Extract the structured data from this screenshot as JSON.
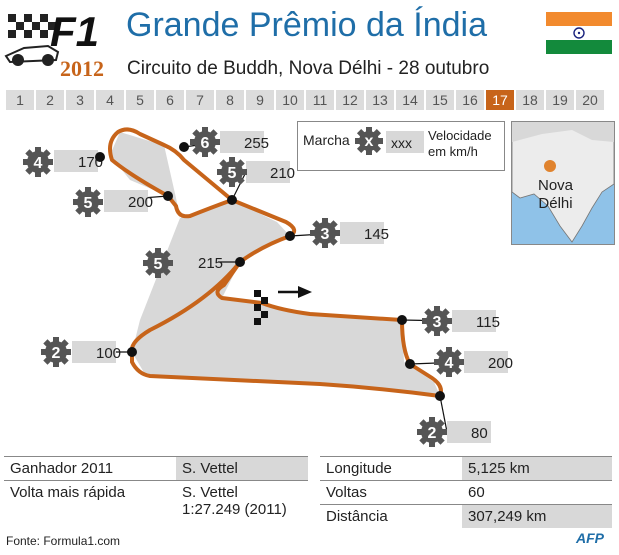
{
  "header": {
    "title": "Grande Prêmio da Índia",
    "subtitle": "Circuito de Buddh, Nova Délhi - 28 outubro",
    "logo_text": "F1",
    "year": "2012"
  },
  "flag": {
    "colors": [
      "#f28a2e",
      "#ffffff",
      "#138a3c"
    ],
    "wheel_color": "#1a237e"
  },
  "rounds": {
    "items": [
      "1",
      "2",
      "3",
      "4",
      "5",
      "6",
      "7",
      "8",
      "9",
      "10",
      "11",
      "12",
      "13",
      "14",
      "15",
      "16",
      "17",
      "18",
      "19",
      "20"
    ],
    "active": "17",
    "accent": "#c7641a"
  },
  "legend": {
    "gear_label": "Marcha",
    "gear_symbol": "x",
    "speed_symbol": "xxx",
    "speed_label_1": "Velocidade",
    "speed_label_2": "em km/h"
  },
  "inset": {
    "city_1": "Nova",
    "city_2": "Délhi"
  },
  "corners": [
    {
      "gear": "6",
      "speed": "255"
    },
    {
      "gear": "4",
      "speed": "170"
    },
    {
      "gear": "5",
      "speed": "210"
    },
    {
      "gear": "5",
      "speed": "200"
    },
    {
      "gear": "3",
      "speed": "145"
    },
    {
      "gear": "5",
      "speed": "215"
    },
    {
      "gear": "3",
      "speed": "115"
    },
    {
      "gear": "2",
      "speed": "100"
    },
    {
      "gear": "4",
      "speed": "200"
    },
    {
      "gear": "2",
      "speed": "80"
    }
  ],
  "stats_left": [
    {
      "label": "Ganhador 2011",
      "value": "S. Vettel"
    },
    {
      "label": "Volta mais rápida",
      "value_1": "S. Vettel",
      "value_2": "1:27.249 (2011)"
    }
  ],
  "stats_right": [
    {
      "label": "Longitude",
      "value": "5,125 km"
    },
    {
      "label": "Voltas",
      "value": "60"
    },
    {
      "label": "Distância",
      "value": "307,249 km"
    }
  ],
  "footer": {
    "source": "Fonte: Formula1.com",
    "agency": "AFP"
  }
}
